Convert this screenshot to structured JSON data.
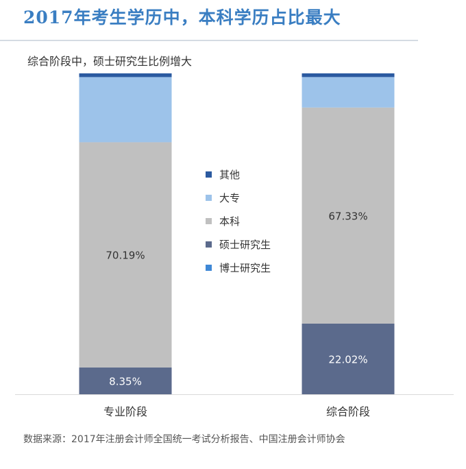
{
  "header": {
    "title": "2017年考生学历中，本科学历占比最大",
    "subtitle": "综合阶段中，硕士研究生比例增大"
  },
  "footer": {
    "source": "数据来源：2017年注册会计师全国统一考试分析报告、中国注册会计师协会"
  },
  "colors": {
    "title": "#3a7ec2",
    "其他": "#2b5aa0",
    "大专": "#9dc3ea",
    "本科": "#c0c0c0",
    "硕士研究生": "#5b6a8c",
    "博士研究生": "#3f88d6"
  },
  "chart_data": {
    "type": "bar",
    "stacked": true,
    "percent_stacked": true,
    "categories": [
      "专业阶段",
      "综合阶段"
    ],
    "series": [
      {
        "name": "博士研究生",
        "values": [
          0.0,
          0.0
        ],
        "color": "#3f88d6"
      },
      {
        "name": "硕士研究生",
        "values": [
          8.35,
          22.02
        ],
        "color": "#5b6a8c",
        "labels": [
          "8.35%",
          "22.02%"
        ]
      },
      {
        "name": "本科",
        "values": [
          70.19,
          67.33
        ],
        "color": "#c0c0c0",
        "labels": [
          "70.19%",
          "67.33%"
        ]
      },
      {
        "name": "大专",
        "values": [
          20.3,
          9.5
        ],
        "color": "#9dc3ea"
      },
      {
        "name": "其他",
        "values": [
          1.16,
          1.15
        ],
        "color": "#2b5aa0"
      }
    ],
    "legend": [
      "其他",
      "大专",
      "本科",
      "硕士研究生",
      "博士研究生"
    ],
    "legend_position": "center",
    "ylim": [
      0,
      100
    ],
    "grid": false,
    "y_axis_visible": false
  }
}
